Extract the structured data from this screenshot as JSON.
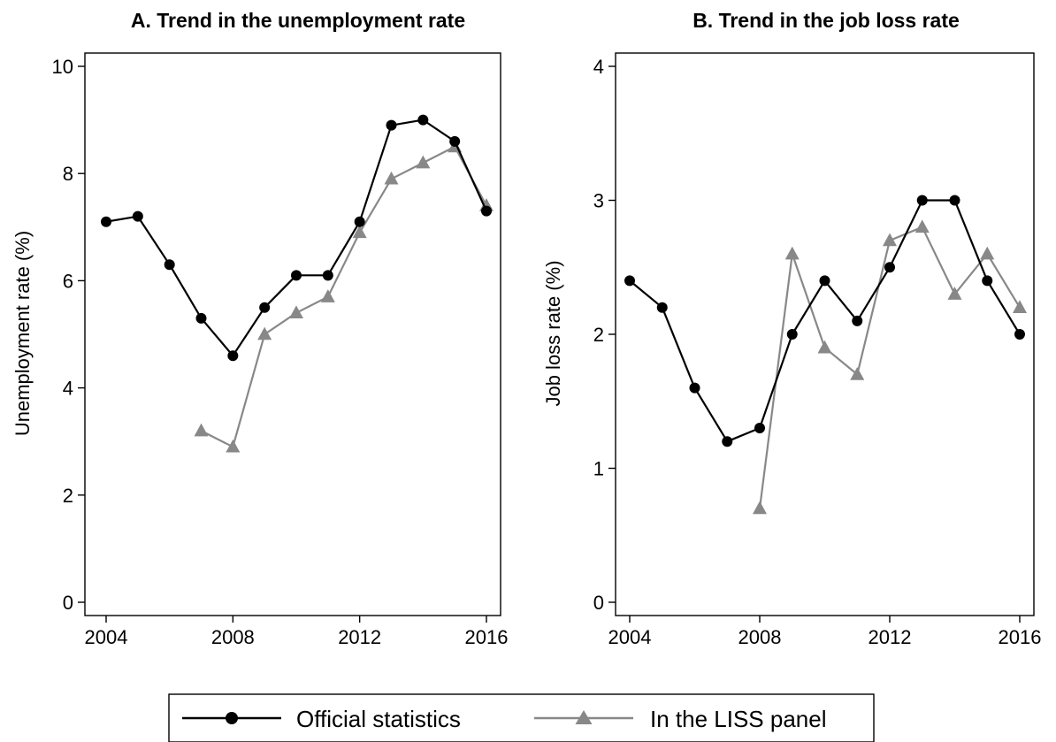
{
  "chart_data": [
    {
      "type": "line",
      "title": "A.   Trend in the unemployment rate",
      "xlabel": "",
      "ylabel": "Unemployment rate (%)",
      "xlim": [
        2004,
        2016
      ],
      "ylim": [
        0,
        10
      ],
      "xticks": [
        "2004",
        "2008",
        "2012",
        "2016"
      ],
      "yticks": [
        "0",
        "2",
        "4",
        "6",
        "8",
        "10"
      ],
      "grid": false,
      "series": [
        {
          "name": "Official statistics",
          "color": "#000000",
          "marker": "circle",
          "x": [
            2004,
            2005,
            2006,
            2007,
            2008,
            2009,
            2010,
            2011,
            2012,
            2013,
            2014,
            2015,
            2016
          ],
          "y": [
            7.1,
            7.2,
            6.3,
            5.3,
            4.6,
            5.5,
            6.1,
            6.1,
            7.1,
            8.9,
            9.0,
            8.6,
            7.3
          ]
        },
        {
          "name": "In the LISS panel",
          "color": "#888888",
          "marker": "triangle",
          "x": [
            2007,
            2008,
            2009,
            2010,
            2011,
            2012,
            2013,
            2014,
            2015,
            2016
          ],
          "y": [
            3.2,
            2.9,
            5.0,
            5.4,
            5.7,
            6.9,
            7.9,
            8.2,
            8.5,
            7.4
          ]
        }
      ]
    },
    {
      "type": "line",
      "title": "B.   Trend in the job loss rate",
      "xlabel": "",
      "ylabel": "Job loss rate (%)",
      "xlim": [
        2004,
        2016
      ],
      "ylim": [
        0,
        4
      ],
      "xticks": [
        "2004",
        "2008",
        "2012",
        "2016"
      ],
      "yticks": [
        "0",
        "1",
        "2",
        "3",
        "4"
      ],
      "grid": false,
      "series": [
        {
          "name": "Official statistics",
          "color": "#000000",
          "marker": "circle",
          "x": [
            2004,
            2005,
            2006,
            2007,
            2008,
            2009,
            2010,
            2011,
            2012,
            2013,
            2014,
            2015,
            2016
          ],
          "y": [
            2.4,
            2.2,
            1.6,
            1.2,
            1.3,
            2.0,
            2.4,
            2.1,
            2.5,
            3.0,
            3.0,
            2.4,
            2.0
          ]
        },
        {
          "name": "In the LISS panel",
          "color": "#888888",
          "marker": "triangle",
          "x": [
            2008,
            2009,
            2010,
            2011,
            2012,
            2013,
            2014,
            2015,
            2016
          ],
          "y": [
            0.7,
            2.6,
            1.9,
            1.7,
            2.7,
            2.8,
            2.3,
            2.6,
            2.2
          ]
        }
      ]
    }
  ],
  "legend": {
    "placement": "bottom-center",
    "items": [
      {
        "label": "Official statistics",
        "color": "#000000",
        "marker": "circle"
      },
      {
        "label": "In the LISS panel",
        "color": "#888888",
        "marker": "triangle"
      }
    ]
  }
}
